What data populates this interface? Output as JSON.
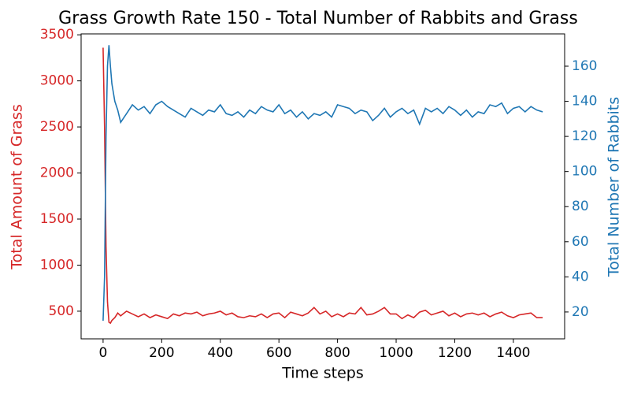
{
  "chart_data": {
    "type": "line",
    "title": "Grass Growth Rate 150 - Total Number of Rabbits and Grass",
    "x_label": "Time steps",
    "y_label": "Total Amount of Grass",
    "y2_label": "Total Number of Rabbits",
    "x": [
      0,
      5,
      10,
      15,
      20,
      25,
      30,
      40,
      50,
      60,
      80,
      100,
      120,
      140,
      160,
      180,
      200,
      220,
      240,
      260,
      280,
      300,
      320,
      340,
      360,
      380,
      400,
      420,
      440,
      460,
      480,
      500,
      520,
      540,
      560,
      580,
      600,
      620,
      640,
      660,
      680,
      700,
      720,
      740,
      760,
      780,
      800,
      820,
      840,
      860,
      880,
      900,
      920,
      940,
      960,
      980,
      1000,
      1020,
      1040,
      1060,
      1080,
      1100,
      1120,
      1140,
      1160,
      1180,
      1200,
      1220,
      1240,
      1260,
      1280,
      1300,
      1320,
      1340,
      1360,
      1380,
      1400,
      1420,
      1440,
      1460,
      1480,
      1500
    ],
    "series": [
      {
        "name": "Total Amount of Grass",
        "color": "#d62728",
        "axis": "y",
        "values": [
          3360,
          2500,
          1200,
          600,
          380,
          370,
          400,
          430,
          480,
          450,
          500,
          470,
          440,
          470,
          430,
          460,
          440,
          420,
          470,
          450,
          480,
          470,
          490,
          450,
          470,
          480,
          500,
          460,
          480,
          440,
          430,
          450,
          440,
          470,
          430,
          470,
          480,
          430,
          490,
          470,
          450,
          480,
          540,
          470,
          500,
          440,
          470,
          440,
          480,
          470,
          540,
          460,
          470,
          500,
          540,
          470,
          470,
          420,
          460,
          430,
          490,
          510,
          460,
          480,
          500,
          450,
          480,
          440,
          470,
          480,
          460,
          480,
          440,
          470,
          490,
          450,
          430,
          460,
          470,
          480,
          430,
          430
        ]
      },
      {
        "name": "Total Number of Rabbits",
        "color": "#1f77b4",
        "axis": "y2",
        "values": [
          15,
          40,
          120,
          160,
          172,
          160,
          150,
          140,
          135,
          128,
          133,
          138,
          135,
          137,
          133,
          138,
          140,
          137,
          135,
          133,
          131,
          136,
          134,
          132,
          135,
          134,
          138,
          133,
          132,
          134,
          131,
          135,
          133,
          137,
          135,
          134,
          138,
          133,
          135,
          131,
          134,
          130,
          133,
          132,
          134,
          131,
          138,
          137,
          136,
          133,
          135,
          134,
          129,
          132,
          136,
          131,
          134,
          136,
          133,
          135,
          127,
          136,
          134,
          136,
          133,
          137,
          135,
          132,
          135,
          131,
          134,
          133,
          138,
          137,
          139,
          133,
          136,
          137,
          134,
          137,
          135,
          134
        ]
      }
    ],
    "xlim": [
      -75,
      1575
    ],
    "xticks": [
      0,
      200,
      400,
      600,
      800,
      1000,
      1200,
      1400
    ],
    "ylim": [
      200,
      3510
    ],
    "yticks": [
      500,
      1000,
      1500,
      2000,
      2500,
      3000,
      3500
    ],
    "y2lim": [
      4.7,
      178.4
    ],
    "y2ticks": [
      20,
      40,
      60,
      80,
      100,
      120,
      140,
      160
    ]
  }
}
